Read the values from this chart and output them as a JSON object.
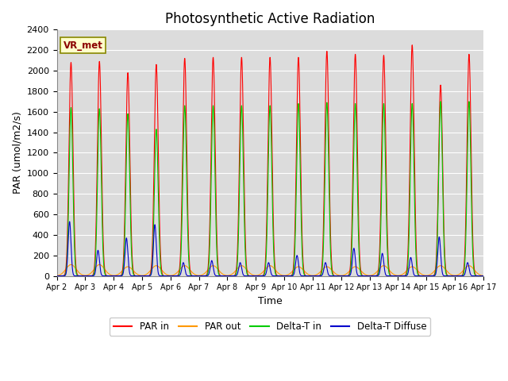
{
  "title": "Photosynthetic Active Radiation",
  "xlabel": "Time",
  "ylabel": "PAR (umol/m2/s)",
  "annotation": "VR_met",
  "ylim": [
    0,
    2400
  ],
  "background_color": "#dcdcdc",
  "x_tick_labels": [
    "Apr 2",
    "Apr 3",
    "Apr 4",
    "Apr 5",
    "Apr 6",
    "Apr 7",
    "Apr 8",
    "Apr 9",
    "Apr 10",
    "Apr 11",
    "Apr 12",
    "Apr 13",
    "Apr 14",
    "Apr 15",
    "Apr 16",
    "Apr 17"
  ],
  "num_days": 15,
  "title_fontsize": 12,
  "axis_fontsize": 9,
  "par_in_peaks": [
    2080,
    2090,
    1980,
    2060,
    2120,
    2130,
    2130,
    2130,
    2130,
    2190,
    2160,
    2150,
    2250,
    1860,
    2160
  ],
  "par_out_peaks": [
    110,
    110,
    90,
    100,
    100,
    100,
    100,
    100,
    90,
    90,
    90,
    100,
    90,
    100,
    100
  ],
  "delta_t_peaks": [
    1640,
    1630,
    1580,
    1430,
    1660,
    1660,
    1660,
    1660,
    1680,
    1690,
    1680,
    1680,
    1680,
    1700,
    1700
  ],
  "delta_t_diff_peaks": [
    530,
    250,
    370,
    500,
    130,
    150,
    130,
    130,
    200,
    130,
    270,
    220,
    180,
    380,
    130
  ],
  "par_in_color": "#ff0000",
  "par_out_color": "#ff9900",
  "delta_t_in_color": "#00cc00",
  "delta_t_diff_color": "#0000cc"
}
